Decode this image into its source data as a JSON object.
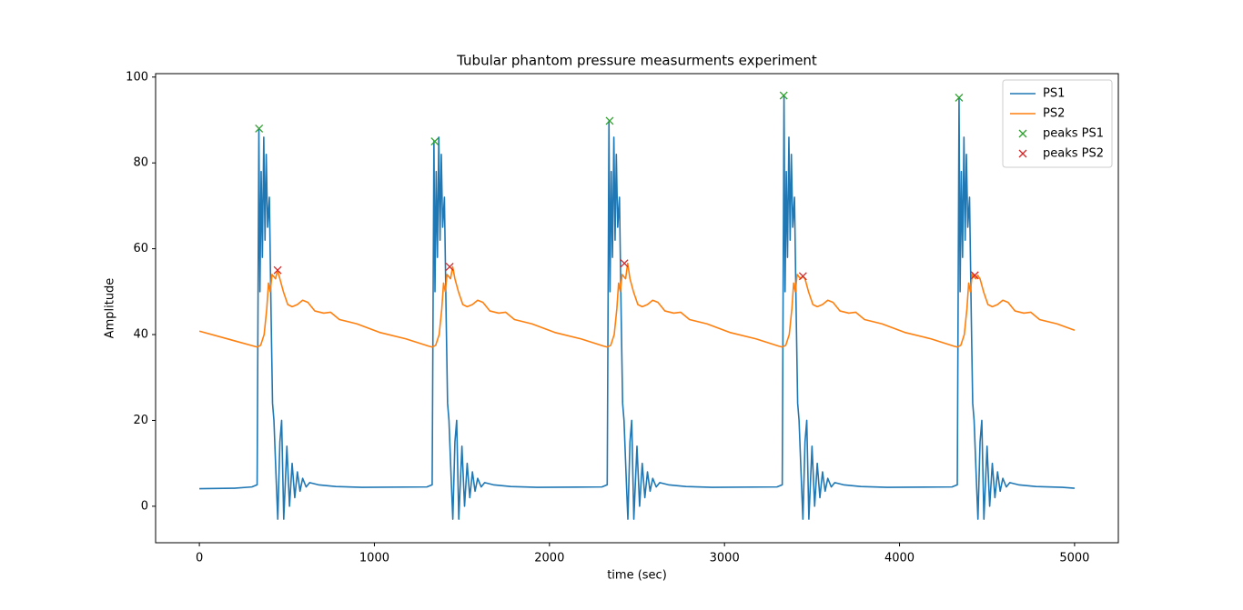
{
  "chart_data": {
    "type": "line",
    "title": "Tubular phantom pressure measurments experiment",
    "xlabel": "time (sec)",
    "ylabel": "Amplitude",
    "xlim": [
      -250,
      5250
    ],
    "ylim": [
      -8.5,
      100.8
    ],
    "xticks": [
      0,
      1000,
      2000,
      3000,
      4000,
      5000
    ],
    "yticks": [
      0,
      20,
      40,
      60,
      80,
      100
    ],
    "legend": "upper right",
    "series": [
      {
        "name": "PS1",
        "color": "#1f77b4",
        "style": "line",
        "x": [
          0,
          200,
          300,
          330,
          340,
          346,
          353,
          360,
          368,
          375,
          382,
          390,
          400,
          410,
          418,
          426,
          440,
          448,
          460,
          470,
          482,
          500,
          515,
          530,
          545,
          560,
          575,
          590,
          610,
          630,
          680,
          780,
          930,
          1300,
          1330,
          1340,
          1346,
          1353,
          1360,
          1368,
          1375,
          1382,
          1390,
          1400,
          1410,
          1418,
          1426,
          1440,
          1448,
          1460,
          1470,
          1482,
          1500,
          1515,
          1530,
          1545,
          1560,
          1575,
          1590,
          1610,
          1630,
          1680,
          1780,
          1930,
          2300,
          2330,
          2340,
          2346,
          2353,
          2360,
          2368,
          2375,
          2382,
          2390,
          2400,
          2410,
          2418,
          2426,
          2440,
          2448,
          2460,
          2470,
          2482,
          2500,
          2515,
          2530,
          2545,
          2560,
          2575,
          2590,
          2610,
          2630,
          2680,
          2780,
          2930,
          3300,
          3330,
          3340,
          3346,
          3353,
          3360,
          3368,
          3375,
          3382,
          3390,
          3400,
          3410,
          3418,
          3426,
          3440,
          3448,
          3460,
          3470,
          3482,
          3500,
          3515,
          3530,
          3545,
          3560,
          3575,
          3590,
          3610,
          3630,
          3680,
          3780,
          3930,
          4300,
          4330,
          4340,
          4346,
          4353,
          4360,
          4368,
          4375,
          4382,
          4390,
          4400,
          4410,
          4418,
          4426,
          4440,
          4448,
          4460,
          4470,
          4482,
          4500,
          4515,
          4530,
          4545,
          4560,
          4575,
          4590,
          4610,
          4630,
          4680,
          4780,
          4930,
          5000
        ],
        "values": [
          4.1,
          4.2,
          4.5,
          5,
          88,
          50,
          78,
          58,
          86,
          62,
          82,
          65,
          72,
          44,
          24,
          20,
          5,
          -3,
          15,
          20,
          -3,
          14,
          0,
          10,
          2,
          8,
          3.5,
          6.5,
          4.5,
          5.5,
          5,
          4.6,
          4.4,
          4.5,
          5,
          85,
          50,
          78,
          58,
          86,
          62,
          82,
          65,
          72,
          44,
          24,
          20,
          5,
          -3,
          15,
          20,
          -3,
          14,
          0,
          10,
          2,
          8,
          3.5,
          6.5,
          4.5,
          5.5,
          5,
          4.6,
          4.4,
          4.5,
          5,
          89.8,
          50,
          78,
          58,
          86,
          62,
          82,
          65,
          72,
          44,
          24,
          20,
          5,
          -3,
          15,
          20,
          -3,
          14,
          0,
          10,
          2,
          8,
          3.5,
          6.5,
          4.5,
          5.5,
          5,
          4.6,
          4.4,
          4.5,
          5,
          95.7,
          50,
          78,
          58,
          86,
          62,
          82,
          65,
          72,
          44,
          24,
          20,
          5,
          -3,
          15,
          20,
          -3,
          14,
          0,
          10,
          2,
          8,
          3.5,
          6.5,
          4.5,
          5.5,
          5,
          4.6,
          4.4,
          4.5,
          5,
          95.2,
          50,
          78,
          58,
          86,
          62,
          82,
          65,
          72,
          44,
          24,
          20,
          5,
          -3,
          15,
          20,
          -3,
          14,
          0,
          10,
          2,
          8,
          3.5,
          6.5,
          4.5,
          5.5,
          5,
          4.6,
          4.4,
          4.2
        ]
      },
      {
        "name": "PS2",
        "color": "#ff7f0e",
        "style": "line",
        "x": [
          0,
          330,
          350,
          370,
          385,
          395,
          405,
          415,
          435,
          447,
          460,
          480,
          505,
          530,
          560,
          590,
          620,
          660,
          710,
          750,
          800,
          900,
          1030,
          1180,
          1310,
          1330,
          1350,
          1370,
          1385,
          1395,
          1405,
          1415,
          1435,
          1447,
          1460,
          1480,
          1505,
          1530,
          1560,
          1590,
          1620,
          1660,
          1710,
          1750,
          1800,
          1900,
          2030,
          2180,
          2310,
          2330,
          2350,
          2370,
          2385,
          2395,
          2405,
          2415,
          2435,
          2447,
          2460,
          2480,
          2505,
          2530,
          2560,
          2590,
          2620,
          2660,
          2710,
          2750,
          2800,
          2900,
          3030,
          3180,
          3310,
          3330,
          3350,
          3370,
          3385,
          3395,
          3405,
          3415,
          3435,
          3447,
          3460,
          3480,
          3505,
          3530,
          3560,
          3590,
          3620,
          3660,
          3710,
          3750,
          3800,
          3900,
          4030,
          4180,
          4310,
          4330,
          4350,
          4370,
          4385,
          4395,
          4405,
          4415,
          4435,
          4447,
          4460,
          4480,
          4505,
          4530,
          4560,
          4590,
          4620,
          4660,
          4710,
          4750,
          4800,
          4900,
          5000
        ],
        "values": [
          40.8,
          37.1,
          37.5,
          40,
          46,
          52,
          50,
          54,
          53,
          55,
          53,
          50,
          47,
          46.5,
          47,
          48,
          47.5,
          45.5,
          45,
          45.2,
          43.5,
          42.5,
          40.5,
          39,
          37.3,
          37.1,
          37.5,
          40,
          46,
          52,
          50,
          54,
          53,
          55.8,
          53,
          50,
          47,
          46.5,
          47,
          48,
          47.5,
          45.5,
          45,
          45.2,
          43.5,
          42.5,
          40.5,
          39,
          37.3,
          37.1,
          37.5,
          40,
          46,
          52,
          50,
          54,
          53,
          56.6,
          53,
          50,
          47,
          46.5,
          47,
          48,
          47.5,
          45.5,
          45,
          45.2,
          43.5,
          42.5,
          40.5,
          39,
          37.3,
          37.1,
          37.5,
          40,
          46,
          52,
          50,
          54,
          53,
          53.6,
          53,
          50,
          47,
          46.5,
          47,
          48,
          47.5,
          45.5,
          45,
          45.2,
          43.5,
          42.5,
          40.5,
          39,
          37.3,
          37.1,
          37.5,
          40,
          46,
          52,
          50,
          54,
          53,
          53.8,
          53,
          50,
          47,
          46.5,
          47,
          48,
          47.5,
          45.5,
          45,
          45.2,
          43.5,
          42.5,
          41
        ]
      },
      {
        "name": "peaks PS1",
        "color": "#2ca02c",
        "style": "x",
        "x": [
          341,
          1345,
          2344,
          3338,
          4340
        ],
        "values": [
          88,
          85,
          89.8,
          95.7,
          95.2
        ]
      },
      {
        "name": "peaks PS2",
        "color": "#d62728",
        "style": "x",
        "x": [
          447,
          1430,
          2428,
          3448,
          4430
        ],
        "values": [
          55,
          55.8,
          56.6,
          53.6,
          53.8
        ]
      }
    ]
  }
}
